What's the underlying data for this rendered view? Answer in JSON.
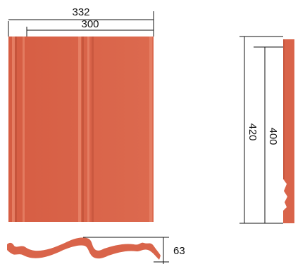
{
  "dimensions": {
    "total_width": "332",
    "cover_width": "300",
    "total_length": "420",
    "cover_length": "400",
    "profile_height": "63"
  },
  "colors": {
    "tile": "#d9644a",
    "tile_dark": "#b84a33",
    "tile_light": "#e88a70",
    "line": "#111111"
  }
}
